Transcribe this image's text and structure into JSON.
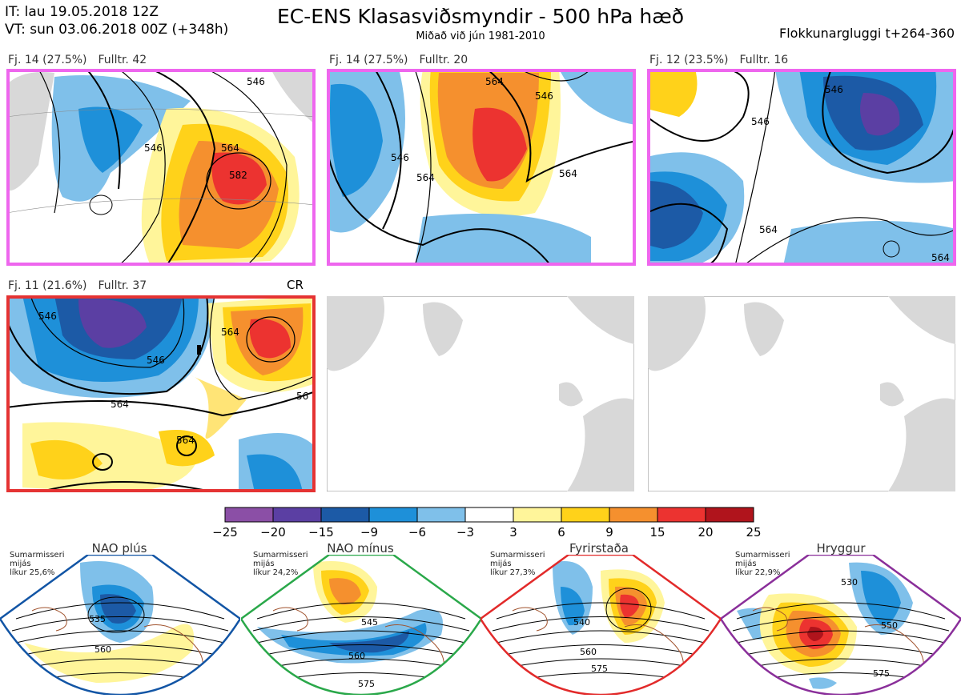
{
  "header": {
    "it": "IT: lau 19.05.2018 12Z",
    "vt": "VT: sun 03.06.2018 00Z  (+348h)",
    "title": "EC-ENS Klasasviðsmyndir - 500 hPa hæð",
    "subtitle": "Miðað við jún 1981-2010",
    "window": "Flokkunargluggi t+264-360"
  },
  "panels": [
    {
      "fj": "Fj. 14 (27.5%)",
      "fulltr": "Fulltr. 42",
      "border": "#ee66ee",
      "contours": [
        "546",
        "564",
        "582",
        "546"
      ]
    },
    {
      "fj": "Fj. 14 (27.5%)",
      "fulltr": "Fulltr. 20",
      "border": "#ee66ee",
      "contours": [
        "546",
        "564",
        "564",
        "546",
        "564"
      ]
    },
    {
      "fj": "Fj. 12 (23.5%)",
      "fulltr": "Fulltr. 16",
      "border": "#ee66ee",
      "contours": [
        "546",
        "546",
        "564",
        "564"
      ]
    },
    {
      "fj": "Fj. 11 (21.6%)",
      "fulltr": "Fulltr. 37",
      "border": "#e53333",
      "tag": "CR",
      "contours": [
        "546",
        "546",
        "564",
        "564",
        "564",
        "56"
      ]
    }
  ],
  "colorbar": {
    "ticks": [
      "−25",
      "−20",
      "−15",
      "−9",
      "−6",
      "−3",
      "3",
      "6",
      "9",
      "15",
      "20",
      "25"
    ],
    "colors": [
      "#8b4fa6",
      "#5b3fa3",
      "#1c5aa6",
      "#1e90d9",
      "#7fc0ea",
      "#ffffff",
      "#fff59a",
      "#ffd21a",
      "#f5902e",
      "#ec3330",
      "#b0141c"
    ]
  },
  "regimes": [
    {
      "title": "NAO plús",
      "note": [
        "Sumarmisseri",
        "mijás",
        "líkur 25,6%"
      ],
      "color": "#1255a5",
      "dot": "#1255a5",
      "contours": [
        "535",
        "560"
      ]
    },
    {
      "title": "NAO mínus",
      "note": [
        "Sumarmisseri",
        "mijás",
        "líkur 24,2%"
      ],
      "color": "#2aa84a",
      "dot": "#2aa84a",
      "contours": [
        "545",
        "560",
        "575"
      ]
    },
    {
      "title": "Fyrirstaða",
      "note": [
        "Sumarmisseri",
        "mijás",
        "líkur 27,3%"
      ],
      "color": "#e22a2a",
      "dot": "#e22a2a",
      "contours": [
        "540",
        "560",
        "575"
      ]
    },
    {
      "title": "Hryggur",
      "note": [
        "Sumarmisseri",
        "mijás",
        "líkur 22,9%"
      ],
      "color": "#8a2f9a",
      "dot": "#ee66ee",
      "contours": [
        "530",
        "550",
        "575"
      ]
    }
  ]
}
